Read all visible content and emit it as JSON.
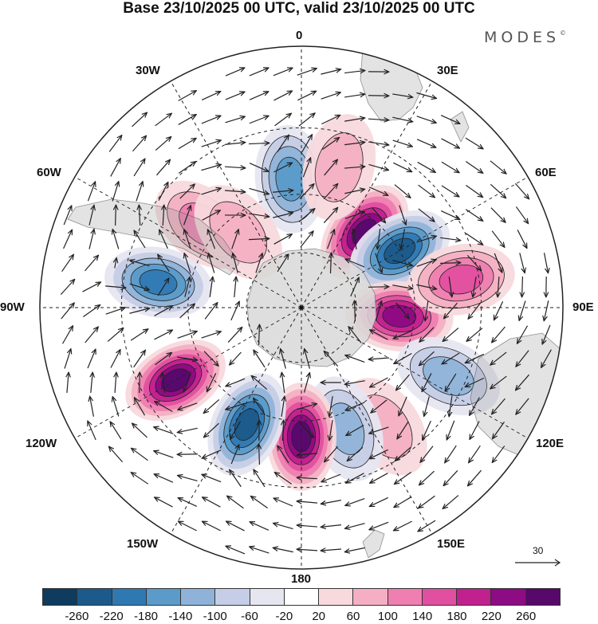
{
  "title": "Base 23/10/2025 00 UTC, valid 23/10/2025 00 UTC",
  "brand": {
    "name": "MODES",
    "mark": "©"
  },
  "map": {
    "projection": "south-polar-stereographic",
    "longitude_labels": {
      "lon_0": "0",
      "lon_30e": "30E",
      "lon_60e": "60E",
      "lon_90e": "90E",
      "lon_120e": "120E",
      "lon_150e": "150E",
      "lon_180": "180",
      "lon_150w": "150W",
      "lon_120w": "120W",
      "lon_90w": "90W",
      "lon_60w": "60W",
      "lon_30w": "30W"
    },
    "anomaly_centers": [
      {
        "lon": 355,
        "lat": -45,
        "value": -140
      },
      {
        "lon": 40,
        "lat": -55,
        "value": 240
      },
      {
        "lon": 60,
        "lat": -50,
        "value": -200
      },
      {
        "lon": 95,
        "lat": -55,
        "value": 200
      },
      {
        "lon": 80,
        "lat": -35,
        "value": 140
      },
      {
        "lon": 115,
        "lat": -35,
        "value": -100
      },
      {
        "lon": 145,
        "lat": -40,
        "value": 60
      },
      {
        "lon": 160,
        "lat": -45,
        "value": -80
      },
      {
        "lon": 180,
        "lat": -45,
        "value": 260
      },
      {
        "lon": 205,
        "lat": -45,
        "value": -200
      },
      {
        "lon": 240,
        "lat": -40,
        "value": 260
      },
      {
        "lon": 280,
        "lat": -40,
        "value": -180
      },
      {
        "lon": 310,
        "lat": -45,
        "value": 100
      },
      {
        "lon": 320,
        "lat": -55,
        "value": 60
      },
      {
        "lon": 15,
        "lat": -40,
        "value": 60
      }
    ],
    "vector_reference": {
      "label": "30"
    }
  },
  "colorbar": {
    "colors": [
      "#0e3b5e",
      "#1b5a8a",
      "#2f79b3",
      "#5a9bc9",
      "#8fb3d8",
      "#c5cee6",
      "#e6e6f1",
      "#ffffff",
      "#f8d9dd",
      "#f4b0c2",
      "#ee7fb0",
      "#e04fa0",
      "#c1208f",
      "#8d0b83",
      "#56096b"
    ],
    "tick_labels": [
      "-260",
      "-220",
      "-180",
      "-140",
      "-100",
      "-60",
      "-20",
      "20",
      "60",
      "100",
      "140",
      "180",
      "220",
      "260"
    ]
  }
}
